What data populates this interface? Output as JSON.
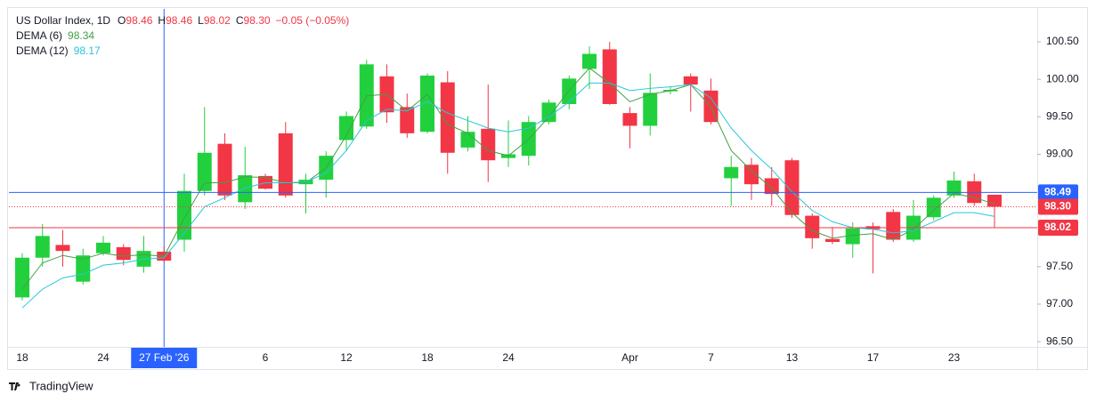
{
  "chart_data": {
    "type": "candlestick",
    "title": "US Dollar Index, 1D",
    "legend": {
      "ohlc": [
        {
          "label": "O",
          "value": "98.46"
        },
        {
          "label": "H",
          "value": "98.46"
        },
        {
          "label": "L",
          "value": "98.02"
        },
        {
          "label": "C",
          "value": "98.30"
        }
      ],
      "change": "−0.05 (−0.05%)",
      "color": "#f23645"
    },
    "categories": [
      "18",
      null,
      null,
      null,
      "24",
      null,
      null,
      "27 Feb '26",
      null,
      null,
      null,
      null,
      "6",
      null,
      null,
      null,
      "12",
      null,
      null,
      null,
      "18",
      null,
      null,
      null,
      "24",
      null,
      null,
      null,
      null,
      null,
      "Apr",
      null,
      null,
      null,
      "7",
      null,
      null,
      null,
      "13",
      null,
      null,
      null,
      "17",
      null,
      null,
      null,
      "23",
      null,
      null
    ],
    "highlight_category": 7,
    "open": [
      97.09,
      97.62,
      97.79,
      97.3,
      97.68,
      97.76,
      97.5,
      97.7,
      97.86,
      98.51,
      99.14,
      98.36,
      98.71,
      99.28,
      98.6,
      98.66,
      99.19,
      99.37,
      100.04,
      99.63,
      99.3,
      99.96,
      99.09,
      99.34,
      98.95,
      98.98,
      99.43,
      99.67,
      100.14,
      100.4,
      99.55,
      99.38,
      99.84,
      100.04,
      99.85,
      98.68,
      98.86,
      98.68,
      98.92,
      98.18,
      97.87,
      97.8,
      98.04,
      98.23,
      97.86,
      98.16,
      98.45,
      98.64,
      98.46
    ],
    "high": [
      97.68,
      98.07,
      97.99,
      97.74,
      97.91,
      97.8,
      97.91,
      97.77,
      98.74,
      99.63,
      99.28,
      99.1,
      98.74,
      99.43,
      98.74,
      99.04,
      99.57,
      100.26,
      100.2,
      99.81,
      100.08,
      100.11,
      99.51,
      99.93,
      99.45,
      99.51,
      99.73,
      100.05,
      100.44,
      100.5,
      99.63,
      100.08,
      99.9,
      100.08,
      100.01,
      98.98,
      98.95,
      98.83,
      98.95,
      98.21,
      98.03,
      98.09,
      98.09,
      98.27,
      98.39,
      98.45,
      98.77,
      98.74,
      98.46
    ],
    "low": [
      97.05,
      97.5,
      97.5,
      97.26,
      97.65,
      97.52,
      97.42,
      97.56,
      97.7,
      98.45,
      98.39,
      98.27,
      98.53,
      98.42,
      98.21,
      98.42,
      99.04,
      99.34,
      99.42,
      99.22,
      99.28,
      98.74,
      99.04,
      98.63,
      98.83,
      98.85,
      99.4,
      99.6,
      99.87,
      99.66,
      99.08,
      99.25,
      99.8,
      99.57,
      99.4,
      98.31,
      98.39,
      98.31,
      98.15,
      97.74,
      97.8,
      97.62,
      97.41,
      97.83,
      97.83,
      98.12,
      98.42,
      98.31,
      98.02
    ],
    "close": [
      97.62,
      97.91,
      97.71,
      97.65,
      97.82,
      97.59,
      97.71,
      97.58,
      98.51,
      99.02,
      98.45,
      98.72,
      98.54,
      98.45,
      98.66,
      98.98,
      99.51,
      100.2,
      99.56,
      99.28,
      100.05,
      99.02,
      99.3,
      98.92,
      99.0,
      99.43,
      99.69,
      100.01,
      100.34,
      99.67,
      99.38,
      99.82,
      99.86,
      99.93,
      99.43,
      98.83,
      98.6,
      98.47,
      98.19,
      97.88,
      97.83,
      98.01,
      98.0,
      97.86,
      98.18,
      98.42,
      98.65,
      98.35,
      98.3
    ],
    "up_color": "#22d03e",
    "down_color": "#f23645",
    "series": [
      {
        "name": "DEMA (6)",
        "value_label": "98.34",
        "color": "#43a047",
        "values": [
          97.2,
          97.55,
          97.65,
          97.6,
          97.68,
          97.64,
          97.66,
          97.64,
          98.15,
          98.62,
          98.62,
          98.7,
          98.69,
          98.62,
          98.62,
          98.82,
          99.25,
          99.78,
          99.8,
          99.58,
          99.8,
          99.4,
          99.28,
          99.05,
          98.98,
          99.2,
          99.5,
          99.85,
          100.15,
          99.95,
          99.7,
          99.8,
          99.85,
          99.93,
          99.63,
          99.05,
          98.78,
          98.55,
          98.22,
          97.98,
          97.88,
          97.92,
          97.94,
          97.86,
          98.0,
          98.25,
          98.48,
          98.42,
          98.34
        ]
      },
      {
        "name": "DEMA (12)",
        "value_label": "98.17",
        "color": "#26c6da",
        "values": [
          96.95,
          97.2,
          97.35,
          97.4,
          97.52,
          97.55,
          97.6,
          97.62,
          97.95,
          98.3,
          98.42,
          98.55,
          98.62,
          98.62,
          98.63,
          98.75,
          99.05,
          99.45,
          99.6,
          99.58,
          99.7,
          99.55,
          99.45,
          99.35,
          99.3,
          99.35,
          99.5,
          99.7,
          99.95,
          99.95,
          99.85,
          99.88,
          99.9,
          99.93,
          99.75,
          99.35,
          99.05,
          98.8,
          98.5,
          98.25,
          98.1,
          98.02,
          98.0,
          97.95,
          97.98,
          98.1,
          98.22,
          98.22,
          98.17
        ]
      }
    ],
    "ylim": [
      96.43,
      100.94
    ],
    "yticks": [
      {
        "value": 96.5,
        "label": "96.50"
      },
      {
        "value": 97,
        "label": "97.00"
      },
      {
        "value": 97.5,
        "label": "97.50"
      },
      {
        "value": 99,
        "label": "99.00"
      },
      {
        "value": 99.5,
        "label": "99.50"
      },
      {
        "value": 100,
        "label": "100.00"
      },
      {
        "value": 100.5,
        "label": "100.50"
      }
    ],
    "price_lines": [
      {
        "value": 98.49,
        "label": "98.49",
        "color": "#2962ff",
        "style": "solid"
      },
      {
        "value": 98.3,
        "label": "98.30",
        "color": "#f23645",
        "style": "dotted"
      },
      {
        "value": 98.02,
        "label": "98.02",
        "color": "#f23645",
        "style": "solid"
      }
    ],
    "grid": false,
    "brand": "TradingView"
  }
}
